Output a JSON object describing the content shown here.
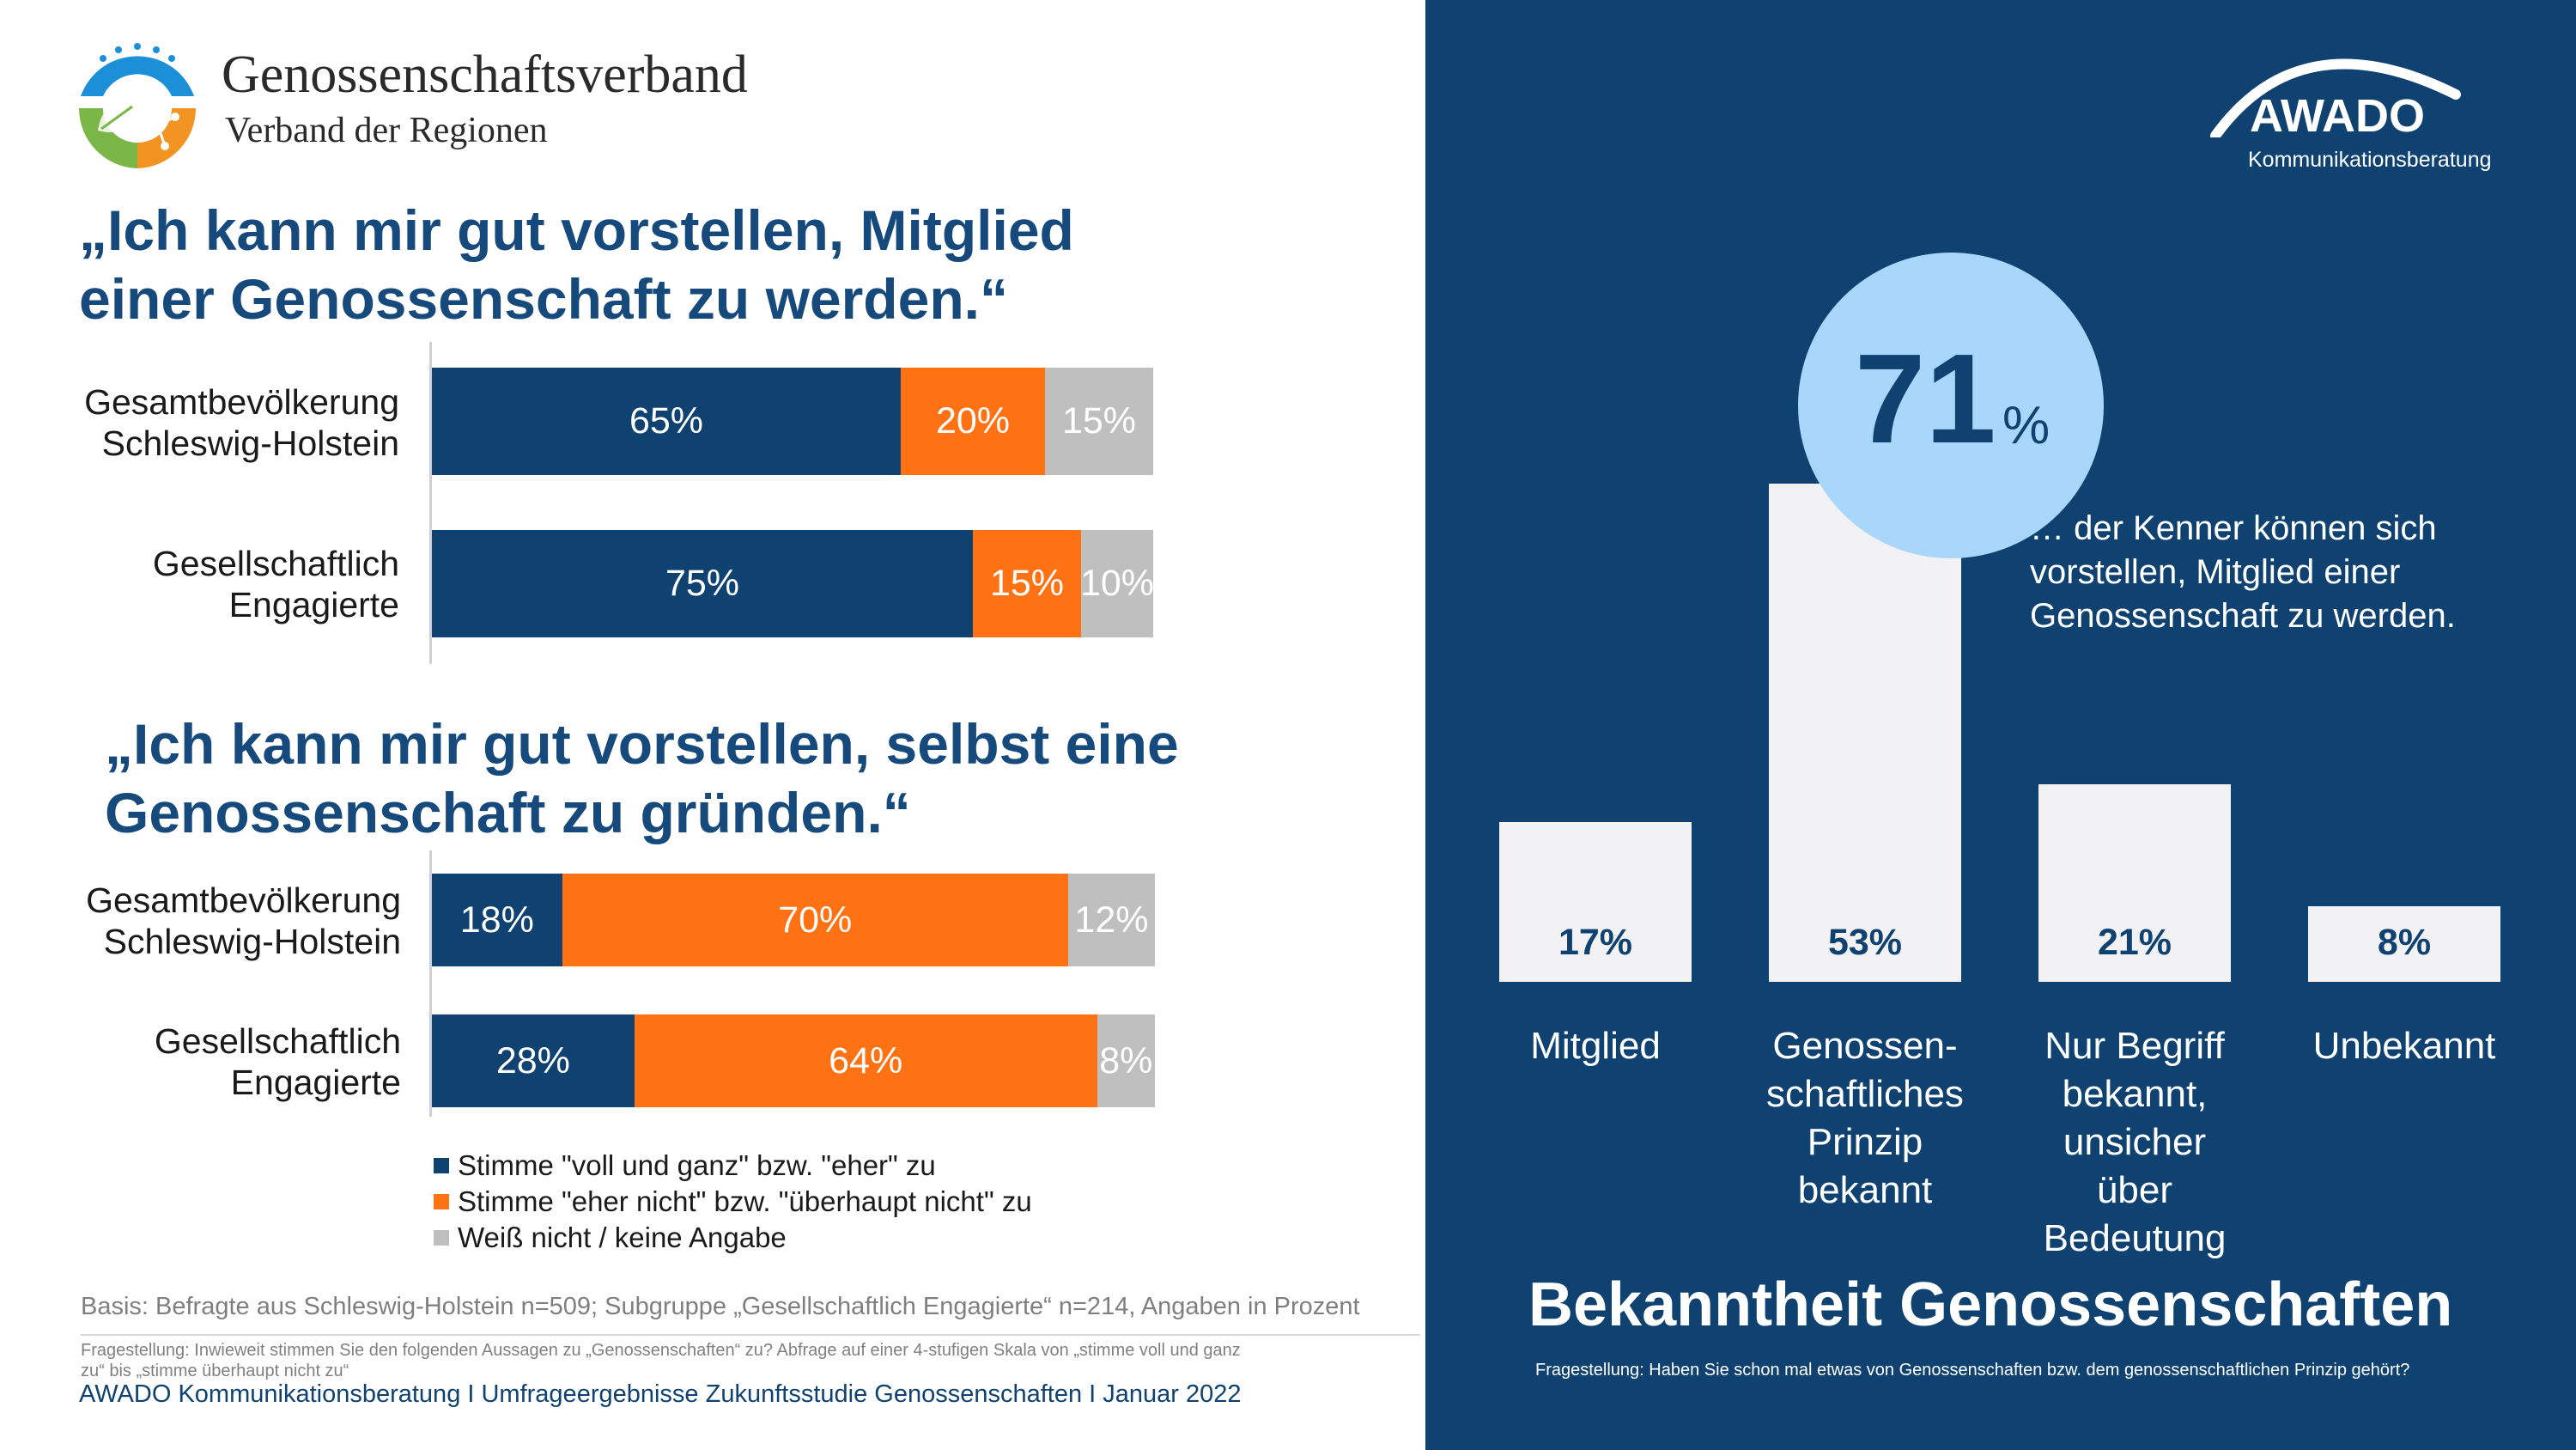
{
  "brand": {
    "org_name": "Genossenschaftsverband",
    "org_subtitle": "Verband der Regionen",
    "logo_icon": "cooperative-leaf-globe-icon",
    "awado_name": "AWADO",
    "awado_subtitle": "Kommunikationsberatung",
    "colors": {
      "navy": "#0f4270",
      "orange": "#ff7214",
      "gray": "#bfbfbf",
      "light_blue": "#a9d6fb"
    }
  },
  "chart_data": [
    {
      "type": "bar",
      "orientation": "horizontal-stacked",
      "title": "„Ich kann mir gut vorstellen, Mitglied einer Genossenschaft zu werden.“",
      "categories": [
        "Gesamtbevölkerung Schleswig-Holstein",
        "Gesellschaftlich Engagierte"
      ],
      "category_lines": [
        [
          "Gesamtbevölkerung",
          "Schleswig-Holstein"
        ],
        [
          "Gesellschaftlich",
          "Engagierte"
        ]
      ],
      "series": [
        {
          "name": "Stimme \"voll und ganz\" bzw. \"eher\" zu",
          "values": [
            65,
            75
          ],
          "labels": [
            "65%",
            "75%"
          ]
        },
        {
          "name": "Stimme \"eher nicht\" bzw. \"überhaupt nicht\" zu",
          "values": [
            20,
            15
          ],
          "labels": [
            "20%",
            "15%"
          ]
        },
        {
          "name": "Weiß nicht / keine Angabe",
          "values": [
            15,
            10
          ],
          "labels": [
            "15%",
            "10%"
          ]
        }
      ],
      "xlim": [
        0,
        100
      ]
    },
    {
      "type": "bar",
      "orientation": "horizontal-stacked",
      "title": "„Ich kann mir gut vorstellen, selbst eine Genossenschaft zu gründen.“",
      "categories": [
        "Gesamtbevölkerung Schleswig-Holstein",
        "Gesellschaftlich Engagierte"
      ],
      "category_lines": [
        [
          "Gesamtbevölkerung",
          "Schleswig-Holstein"
        ],
        [
          "Gesellschaftlich",
          "Engagierte"
        ]
      ],
      "series": [
        {
          "name": "Stimme \"voll und ganz\" bzw. \"eher\" zu",
          "values": [
            18,
            28
          ],
          "labels": [
            "18%",
            "28%"
          ]
        },
        {
          "name": "Stimme \"eher nicht\" bzw. \"überhaupt nicht\" zu",
          "values": [
            70,
            64
          ],
          "labels": [
            "70%",
            "64%"
          ]
        },
        {
          "name": "Weiß nicht / keine Angabe",
          "values": [
            12,
            8
          ],
          "labels": [
            "12%",
            "8%"
          ]
        }
      ],
      "xlim": [
        0,
        100
      ]
    },
    {
      "type": "bar",
      "orientation": "vertical",
      "title": "Bekanntheit Genossenschaften",
      "categories": [
        "Mitglied",
        "Genossen-schaftliches Prinzip bekannt",
        "Nur Begriff bekannt, unsicher über Bedeutung",
        "Unbekannt"
      ],
      "category_lines": [
        [
          "Mitglied"
        ],
        [
          "Genossen-",
          "schaftliches",
          "Prinzip",
          "bekannt"
        ],
        [
          "Nur Begriff",
          "bekannt,",
          "unsicher",
          "über",
          "Bedeutung"
        ],
        [
          "Unbekannt"
        ]
      ],
      "values": [
        17,
        53,
        21,
        8
      ],
      "labels": [
        "17%",
        "53%",
        "21%",
        "8%"
      ],
      "ylim": [
        0,
        53
      ]
    }
  ],
  "headline1_lines": [
    "„Ich kann mir gut vorstellen, Mitglied",
    "einer Genossenschaft zu werden.“"
  ],
  "headline2_lines": [
    "„Ich kann mir gut vorstellen, selbst eine",
    "Genossenschaft zu gründen.“"
  ],
  "legend": [
    "Stimme \"voll und ganz\" bzw. \"eher\" zu",
    "Stimme \"eher nicht\" bzw. \"überhaupt nicht\" zu",
    "Weiß nicht / keine Angabe"
  ],
  "basis": "Basis: Befragte aus Schleswig-Holstein n=509; Subgruppe „Gesellschaftlich Engagierte“ n=214, Angaben in Prozent",
  "question_left_lines": [
    "Fragestellung: Inwieweit stimmen Sie den folgenden Aussagen zu „Genossenschaften“ zu? Abfrage auf einer 4-stufigen Skala von „stimme voll und ganz",
    "zu“ bis „stimme überhaupt nicht zu“"
  ],
  "footer": "AWADO Kommunikationsberatung I Umfrageergebnisse Zukunftsstudie Genossenschaften  I Januar 2022",
  "highlight": {
    "number": "71",
    "unit": "%",
    "text_lines": [
      "… der Kenner können sich",
      "vorstellen, Mitglied einer",
      "Genossenschaft zu werden."
    ]
  },
  "right_title": "Bekanntheit Genossenschaften",
  "question_right": "Fragestellung: Haben Sie schon mal etwas von Genossenschaften bzw. dem genossenschaftlichen Prinzip gehört?"
}
